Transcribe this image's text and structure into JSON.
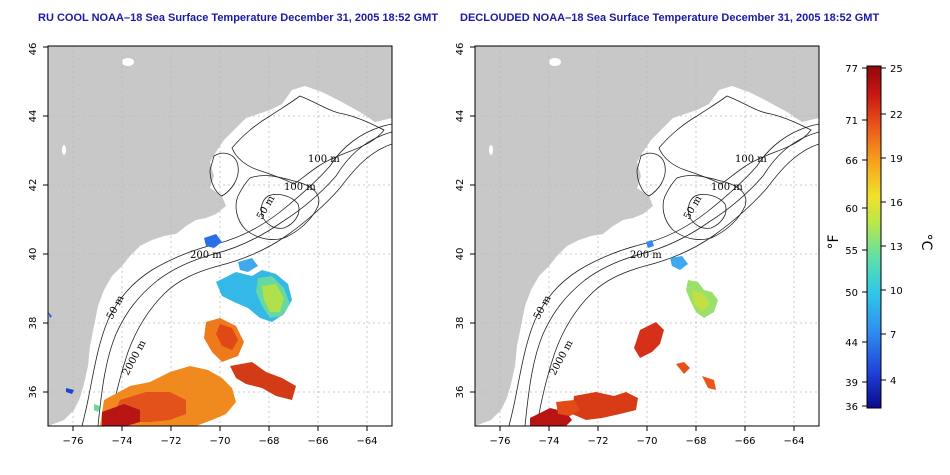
{
  "maps": [
    {
      "id": "left",
      "title": "RU COOL NOAA–18 Sea Surface Temperature December 31, 2005 18:52 GMT",
      "contour_labels": [
        "100 m",
        "100 m",
        "50 m",
        "200 m",
        "50 m",
        "2000 m"
      ]
    },
    {
      "id": "right",
      "title": "DECLOUDED NOAA–18 Sea Surface Temperature December 31, 2005 18:52 GMT",
      "contour_labels": [
        "100 m",
        "100 m",
        "50 m",
        "200 m",
        "50 m",
        "2000 m"
      ]
    }
  ],
  "axes": {
    "x_ticks": [
      "−76",
      "−74",
      "−72",
      "−70",
      "−68",
      "−66",
      "−64"
    ],
    "y_ticks": [
      "36",
      "38",
      "40",
      "42",
      "44",
      "46"
    ],
    "lon_range": [
      -77,
      -63
    ],
    "lat_range": [
      35,
      46
    ]
  },
  "colorbar": {
    "fahrenheit_label": "°F",
    "celsius_label": "°C",
    "fahrenheit_ticks": [
      "77",
      "71",
      "66",
      "60",
      "55",
      "50",
      "44",
      "39",
      "36"
    ],
    "celsius_ticks": [
      "25",
      "22",
      "19",
      "16",
      "13",
      "10",
      "7",
      "4"
    ],
    "colors": [
      "#0a0a8c",
      "#1f3fd6",
      "#2f8cf0",
      "#31c8e6",
      "#5ee0a8",
      "#b8e84a",
      "#f2e12a",
      "#f7a21c",
      "#ea5a1a",
      "#c81414",
      "#8e0a0a"
    ]
  },
  "colors": {
    "land": "#c8c8c8",
    "ocean": "#ffffff",
    "title": "#1a1aa6"
  }
}
